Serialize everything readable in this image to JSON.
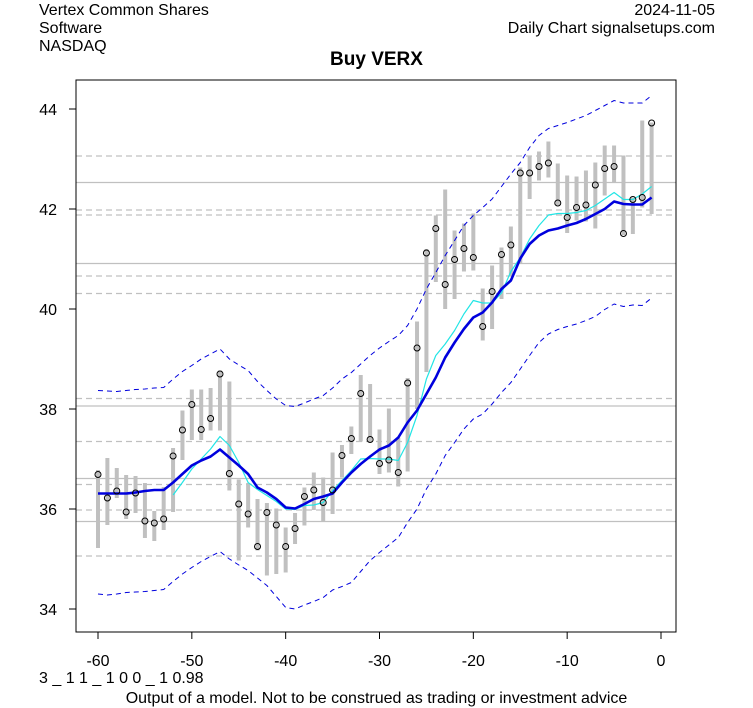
{
  "header": {
    "company": "Vertex Common Shares",
    "sector": "Software",
    "exchange": "NASDAQ",
    "date": "2024-11-05",
    "source": "Daily Chart signalsetups.com"
  },
  "footer": {
    "code": "3 _ 1 1 _ 1 0 0 _ 1 0.98",
    "disclaimer": "Output of a model. Not to be construed as trading or investment advice"
  },
  "colors": {
    "bars": "#c0c0c0",
    "main_line": "#0000dd",
    "fast_line": "#22e5e5",
    "bands": "#0000dd",
    "grid": "#c0c0c0"
  },
  "chart_data": {
    "type": "line",
    "title": "Buy VERX",
    "xlabel": "",
    "ylabel": "",
    "xlim": [
      -62,
      1.5
    ],
    "ylim": [
      33.6,
      44.5
    ],
    "x_ticks": [
      -60,
      -50,
      -40,
      -30,
      -20,
      -10,
      0
    ],
    "y_ticks": [
      34,
      36,
      38,
      40,
      42,
      44
    ],
    "x": [
      -60,
      -59,
      -58,
      -57,
      -56,
      -55,
      -54,
      -53,
      -52,
      -51,
      -50,
      -49,
      -48,
      -47,
      -46,
      -45,
      -44,
      -43,
      -42,
      -41,
      -40,
      -39,
      -38,
      -37,
      -36,
      -35,
      -34,
      -33,
      -32,
      -31,
      -30,
      -29,
      -28,
      -27,
      -26,
      -25,
      -24,
      -23,
      -22,
      -21,
      -20,
      -19,
      -18,
      -17,
      -16,
      -15,
      -14,
      -13,
      -12,
      -11,
      -10,
      -9,
      -8,
      -7,
      -6,
      -5,
      -4,
      -3,
      -2,
      -1
    ],
    "price_bars": {
      "high": [
        36.78,
        37.02,
        36.82,
        36.68,
        36.66,
        36.52,
        35.96,
        36.44,
        37.22,
        37.97,
        38.39,
        38.39,
        38.42,
        38.77,
        38.55,
        36.59,
        36.52,
        36.2,
        36.12,
        36.01,
        35.63,
        35.92,
        36.43,
        36.73,
        36.63,
        37.13,
        37.28,
        37.65,
        38.68,
        38.5,
        37.59,
        38.01,
        37.43,
        38.62,
        39.75,
        41.2,
        41.87,
        42.39,
        41.57,
        41.71,
        41.91,
        40.41,
        40.87,
        41.23,
        41.65,
        42.83,
        43.07,
        43.15,
        43.35,
        42.91,
        42.67,
        42.65,
        42.77,
        42.93,
        43.27,
        43.27,
        43.07,
        42.23,
        43.77,
        43.73
      ],
      "low": [
        35.22,
        35.68,
        36.22,
        35.8,
        35.92,
        35.42,
        35.36,
        35.58,
        35.94,
        36.98,
        37.38,
        37.38,
        37.57,
        37.57,
        36.37,
        34.97,
        35.63,
        35.17,
        34.67,
        34.7,
        34.73,
        35.3,
        35.67,
        35.98,
        35.75,
        35.9,
        36.63,
        37.1,
        37.35,
        37.35,
        36.7,
        36.73,
        36.45,
        36.75,
        38.0,
        38.74,
        40.54,
        40.0,
        40.2,
        40.75,
        40.77,
        39.37,
        39.6,
        40.2,
        40.67,
        40.9,
        42.2,
        42.57,
        42.63,
        42.08,
        41.52,
        41.77,
        41.75,
        41.61,
        42.27,
        42.53,
        41.48,
        41.5,
        42.03,
        41.9
      ],
      "close": [
        36.69,
        36.22,
        36.36,
        35.94,
        36.32,
        35.76,
        35.72,
        35.8,
        37.06,
        37.58,
        38.09,
        37.59,
        37.81,
        38.7,
        36.71,
        36.1,
        35.9,
        35.25,
        35.93,
        35.68,
        35.25,
        35.61,
        36.25,
        36.38,
        36.13,
        36.38,
        37.07,
        37.41,
        38.31,
        37.39,
        36.91,
        36.98,
        36.73,
        38.52,
        39.22,
        41.12,
        41.61,
        40.49,
        40.99,
        41.21,
        41.03,
        39.65,
        40.35,
        41.09,
        41.28,
        42.72,
        42.72,
        42.85,
        42.92,
        42.12,
        41.83,
        42.03,
        42.08,
        42.48,
        42.81,
        42.85,
        41.51,
        42.19,
        42.23,
        43.72
      ]
    },
    "series": [
      {
        "name": "main-average",
        "style": "thick solid blue",
        "values": [
          36.31,
          36.31,
          36.31,
          36.31,
          36.33,
          36.36,
          36.38,
          36.38,
          36.53,
          36.7,
          36.87,
          36.97,
          37.05,
          37.19,
          37.03,
          36.87,
          36.7,
          36.43,
          36.33,
          36.2,
          36.03,
          36.01,
          36.1,
          36.2,
          36.25,
          36.31,
          36.53,
          36.73,
          36.9,
          37.05,
          37.19,
          37.27,
          37.43,
          37.73,
          37.97,
          38.3,
          38.63,
          39.03,
          39.33,
          39.6,
          39.83,
          39.93,
          40.13,
          40.4,
          40.57,
          41.01,
          41.3,
          41.47,
          41.57,
          41.61,
          41.67,
          41.72,
          41.8,
          41.9,
          42.0,
          42.15,
          42.1,
          42.09,
          42.09,
          42.23
        ]
      },
      {
        "name": "fast-average",
        "style": "thin solid cyan",
        "values": [
          null,
          null,
          null,
          null,
          null,
          null,
          null,
          null,
          36.28,
          36.53,
          36.8,
          37.0,
          37.2,
          37.45,
          37.27,
          36.93,
          36.53,
          36.39,
          36.27,
          36.15,
          36.0,
          35.99,
          36.07,
          36.08,
          36.13,
          36.37,
          36.57,
          36.77,
          37.0,
          37.01,
          37.0,
          37.0,
          36.97,
          37.33,
          37.87,
          38.6,
          39.07,
          39.3,
          39.57,
          39.9,
          40.17,
          40.12,
          40.12,
          40.32,
          40.75,
          41.03,
          41.4,
          41.67,
          41.88,
          41.91,
          41.91,
          41.93,
          41.97,
          42.07,
          42.2,
          42.33,
          42.19,
          42.19,
          42.3,
          42.45
        ]
      },
      {
        "name": "upper-band",
        "style": "dashed blue",
        "values": [
          38.37,
          38.36,
          38.35,
          38.37,
          38.39,
          38.4,
          38.42,
          38.43,
          38.6,
          38.75,
          38.87,
          39.0,
          39.1,
          39.2,
          39.0,
          38.88,
          38.77,
          38.55,
          38.37,
          38.2,
          38.07,
          38.05,
          38.12,
          38.2,
          38.27,
          38.42,
          38.6,
          38.73,
          38.9,
          39.07,
          39.22,
          39.35,
          39.47,
          39.67,
          40.0,
          40.4,
          40.73,
          41.07,
          41.37,
          41.67,
          41.87,
          42.03,
          42.2,
          42.45,
          42.7,
          42.93,
          43.23,
          43.47,
          43.61,
          43.67,
          43.73,
          43.8,
          43.87,
          43.97,
          44.07,
          44.17,
          44.12,
          44.12,
          44.12,
          44.27
        ]
      },
      {
        "name": "lower-band",
        "style": "dashed blue",
        "values": [
          34.3,
          34.28,
          34.3,
          34.33,
          34.34,
          34.35,
          34.37,
          34.39,
          34.55,
          34.7,
          34.83,
          34.95,
          35.05,
          35.15,
          35.0,
          34.88,
          34.77,
          34.62,
          34.47,
          34.25,
          34.03,
          34.0,
          34.08,
          34.15,
          34.23,
          34.38,
          34.45,
          34.53,
          34.75,
          34.97,
          35.13,
          35.28,
          35.43,
          35.73,
          36.0,
          36.4,
          36.7,
          37.07,
          37.33,
          37.6,
          37.8,
          37.9,
          38.1,
          38.33,
          38.53,
          38.8,
          39.07,
          39.33,
          39.5,
          39.59,
          39.65,
          39.7,
          39.77,
          39.85,
          39.99,
          40.1,
          40.05,
          40.08,
          40.07,
          40.22
        ]
      }
    ],
    "reference_lines": {
      "solid": [
        42.53,
        40.91,
        38.06,
        36.61,
        35.75
      ],
      "dashed": [
        43.06,
        41.98,
        41.88,
        40.66,
        40.31,
        38.21,
        37.35,
        36.49,
        35.98,
        35.06
      ]
    },
    "grid": false,
    "legend": "none"
  }
}
